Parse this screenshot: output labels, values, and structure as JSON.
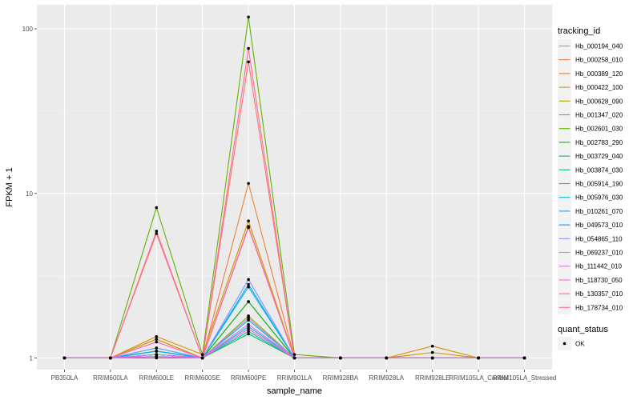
{
  "chart_data": {
    "type": "line",
    "xlabel": "sample_name",
    "ylabel": "FPKM + 1",
    "y_scale": "log10",
    "ylim": [
      0.85,
      140
    ],
    "y_ticks": [
      1,
      10,
      100
    ],
    "y_tick_labels": [
      "1",
      "10",
      "100"
    ],
    "grid": true,
    "legend_position": "right",
    "categories": [
      "PB350LA",
      "RRIM600LA",
      "RRIM600LE",
      "RRIM600SE",
      "RRIM600PE",
      "RRIM901LA",
      "RRIM928BA",
      "RRIM928LA",
      "RRIM928LE",
      "RRIM105LA_Control",
      "RRIM105LA_Stressed"
    ],
    "legend_title": "tracking_id",
    "series": [
      {
        "name": "Hb_000194_040",
        "color": "#F8766D",
        "values": [
          1,
          1,
          5.7,
          1.0,
          63,
          1.0,
          1,
          1,
          1,
          1,
          1
        ]
      },
      {
        "name": "Hb_000258_010",
        "color": "#EC8239",
        "values": [
          1,
          1,
          1.3,
          1.0,
          11.5,
          1.0,
          1,
          1,
          1,
          1,
          1
        ]
      },
      {
        "name": "Hb_000389_120",
        "color": "#DB8E00",
        "values": [
          1,
          1,
          1.35,
          1.05,
          6.8,
          1.0,
          1,
          1,
          1.18,
          1,
          1
        ]
      },
      {
        "name": "Hb_000422_100",
        "color": "#C79800",
        "values": [
          1,
          1,
          1.3,
          1.0,
          6.3,
          1.0,
          1,
          1,
          1.08,
          1,
          1
        ]
      },
      {
        "name": "Hb_000628_090",
        "color": "#AEA200",
        "values": [
          1,
          1,
          1.05,
          1.0,
          2.2,
          1.0,
          1,
          1,
          1,
          1,
          1
        ]
      },
      {
        "name": "Hb_001347_020",
        "color": "#8FAA00",
        "values": [
          1,
          1,
          1.1,
          1.0,
          1.8,
          1.0,
          1,
          1,
          1,
          1,
          1
        ]
      },
      {
        "name": "Hb_002601_030",
        "color": "#64B200",
        "values": [
          1,
          1,
          8.2,
          1.05,
          118,
          1.05,
          1,
          1,
          1,
          1,
          1
        ]
      },
      {
        "name": "Hb_002783_290",
        "color": "#00B81B",
        "values": [
          1,
          1,
          1.05,
          1.0,
          2.2,
          1.0,
          1,
          1,
          1,
          1,
          1
        ]
      },
      {
        "name": "Hb_003729_040",
        "color": "#00BD5C",
        "values": [
          1,
          1,
          1.0,
          1.0,
          1.4,
          1.0,
          1,
          1,
          1,
          1,
          1
        ]
      },
      {
        "name": "Hb_003874_030",
        "color": "#00C08E",
        "values": [
          1,
          1,
          1.02,
          1.0,
          1.45,
          1.0,
          1,
          1,
          1,
          1,
          1
        ]
      },
      {
        "name": "Hb_005914_190",
        "color": "#00C1B7",
        "values": [
          1,
          1,
          1.05,
          1.0,
          1.7,
          1.0,
          1,
          1,
          1,
          1,
          1
        ]
      },
      {
        "name": "Hb_005976_030",
        "color": "#00BDD4",
        "values": [
          1,
          1,
          1.1,
          1.0,
          2.7,
          1.0,
          1,
          1,
          1,
          1,
          1
        ]
      },
      {
        "name": "Hb_010261_070",
        "color": "#00B5EE",
        "values": [
          1,
          1,
          1.15,
          1.0,
          1.55,
          1.0,
          1,
          1,
          1,
          1,
          1
        ]
      },
      {
        "name": "Hb_049573_010",
        "color": "#00A7FF",
        "values": [
          1,
          1,
          1.1,
          1.0,
          2.8,
          1.0,
          1,
          1,
          1,
          1,
          1
        ]
      },
      {
        "name": "Hb_054865_110",
        "color": "#7F96FF",
        "values": [
          1,
          1,
          1.15,
          1.0,
          3.0,
          1.0,
          1,
          1,
          1,
          1,
          1
        ]
      },
      {
        "name": "Hb_069237_010",
        "color": "#BC81FF",
        "values": [
          1,
          1,
          1.05,
          1.0,
          1.75,
          1.0,
          1,
          1,
          1,
          1,
          1
        ]
      },
      {
        "name": "Hb_111442_010",
        "color": "#E26EF7",
        "values": [
          1,
          1,
          1.02,
          1.0,
          1.6,
          1.0,
          1,
          1,
          1,
          1,
          1
        ]
      },
      {
        "name": "Hb_118730_050",
        "color": "#F863DF",
        "values": [
          1,
          1,
          1.02,
          1.0,
          1.5,
          1.0,
          1,
          1,
          1,
          1,
          1
        ]
      },
      {
        "name": "Hb_130357_010",
        "color": "#FF62BF",
        "values": [
          1,
          1,
          1.25,
          1.0,
          6.2,
          1.0,
          1,
          1,
          1,
          1,
          1
        ]
      },
      {
        "name": "Hb_178734_010",
        "color": "#FF6A98",
        "values": [
          1,
          1,
          5.9,
          1.0,
          76,
          1.0,
          1,
          1,
          1,
          1,
          1
        ]
      }
    ],
    "quant_status_legend": {
      "title": "quant_status",
      "label": "OK"
    }
  }
}
